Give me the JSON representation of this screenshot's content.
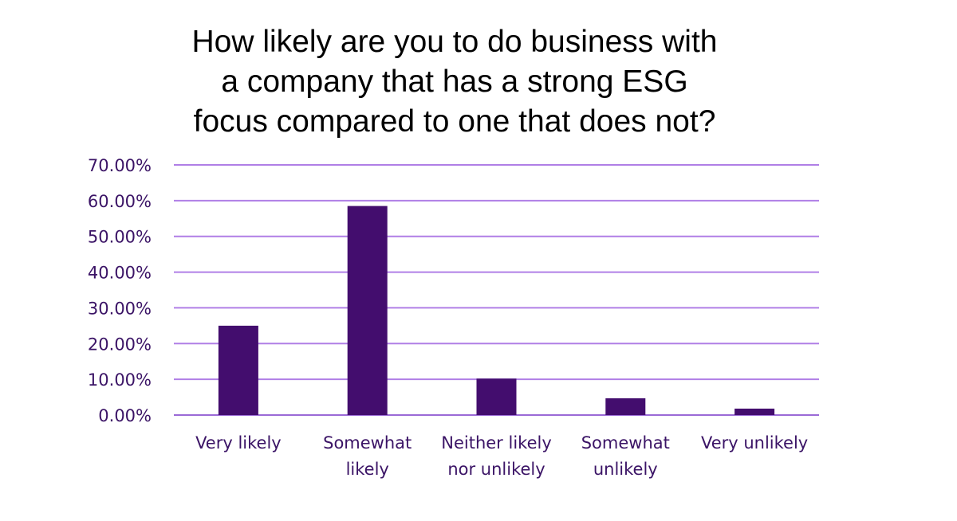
{
  "chart_data": {
    "type": "bar",
    "title_lines": [
      "How likely are you to do business with",
      "a company that has a strong ESG",
      "focus compared to one that does not?"
    ],
    "categories": [
      [
        "Very likely"
      ],
      [
        "Somewhat",
        "likely"
      ],
      [
        "Neither likely",
        "nor unlikely"
      ],
      [
        "Somewhat",
        "unlikely"
      ],
      [
        "Very unlikely"
      ]
    ],
    "values": [
      25.0,
      58.5,
      10.2,
      4.7,
      1.8
    ],
    "ylim": [
      0,
      70
    ],
    "yticks": [
      0,
      10,
      20,
      30,
      40,
      50,
      60,
      70
    ],
    "ytick_labels": [
      "0.00%",
      "10.00%",
      "20.00%",
      "30.00%",
      "40.00%",
      "50.00%",
      "60.00%",
      "70.00%"
    ],
    "xlabel": "",
    "ylabel": "",
    "grid": true,
    "legend": "none",
    "colors": {
      "bar": "#430d6e",
      "grid": "#b07fe6",
      "axis": "#9b6ad6",
      "text": "#3b1466",
      "title": "#000000"
    }
  }
}
